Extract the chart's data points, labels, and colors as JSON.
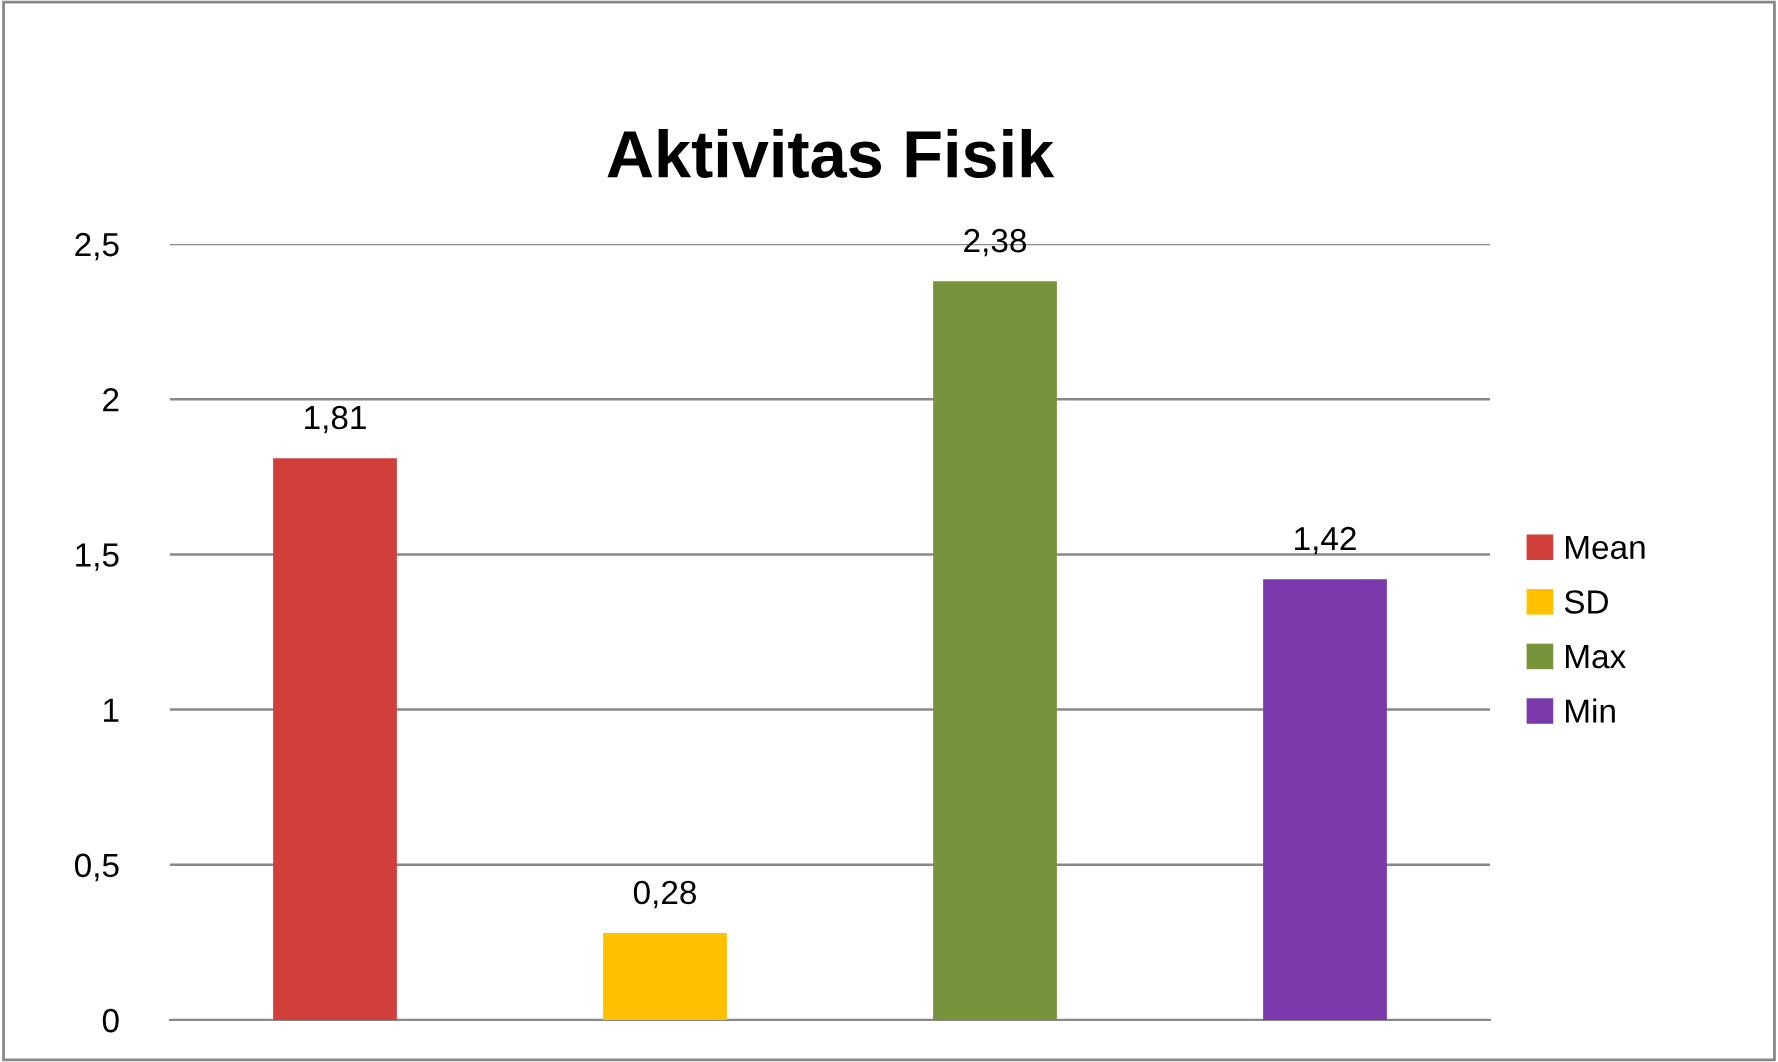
{
  "chart_data": {
    "type": "bar",
    "title": "Aktivitas Fisik",
    "categories": [
      null
    ],
    "series": [
      {
        "name": "Mean",
        "color": "#d13f3b",
        "values": [
          1.81
        ],
        "value_labels": [
          "1,81"
        ]
      },
      {
        "name": "SD",
        "color": "#ffc000",
        "values": [
          0.28
        ],
        "value_labels": [
          "0,28"
        ]
      },
      {
        "name": "Max",
        "color": "#77933c",
        "values": [
          2.38
        ],
        "value_labels": [
          "2,38"
        ]
      },
      {
        "name": "Min",
        "color": "#7a3aac",
        "values": [
          1.42
        ],
        "value_labels": [
          "1,42"
        ]
      }
    ],
    "ylim": [
      0,
      2.5
    ],
    "yticks": [
      0,
      {
        "value": 0.5,
        "label": "0,5"
      },
      1,
      {
        "value": 1.5,
        "label": "1,5"
      },
      2,
      {
        "value": 2.5,
        "label": "2,5"
      }
    ],
    "grid": "y",
    "legend": "right",
    "tick_labels": "y"
  }
}
